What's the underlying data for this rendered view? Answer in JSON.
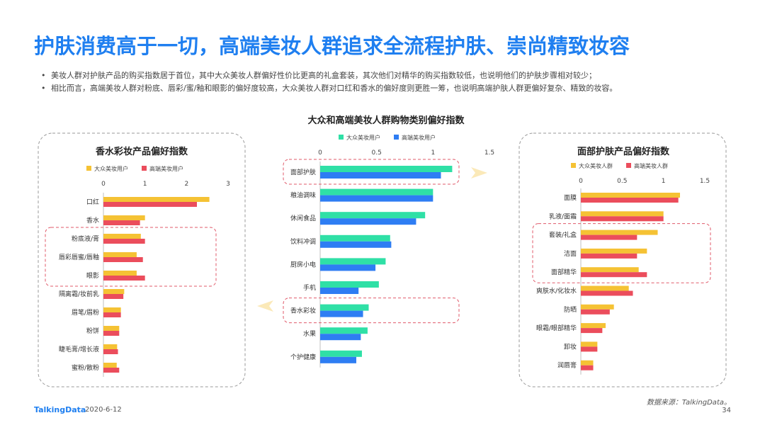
{
  "page": {
    "title": "护肤消费高于一切，高端美妆人群追求全流程护肤、崇尚精致妆容",
    "bullets": [
      "美妆人群对护肤产品的购买指数居于首位，其中大众美妆人群偏好性价比更高的礼盒套装，其次他们对精华的购买指数较低，也说明他们的护肤步骤相对较少；",
      "相比而言，高端美妆人群对粉底、唇彩/蜜/釉和眼影的偏好度较高，大众美妆人群对口红和香水的偏好度则更胜一筹，也说明高端护肤人群更偏好复杂、精致的妆容。"
    ],
    "footer": {
      "logo": "TalkingData",
      "date": "2020-6-12",
      "source": "数据来源：TalkingData。",
      "page_number": "34"
    }
  },
  "colors": {
    "mass": "#f5c234",
    "premium": "#eb4d5c",
    "mass_center": "#2fe0a6",
    "premium_center": "#2e7df3",
    "highlight": "#e05a6a",
    "arrow": "#fbe9b8"
  },
  "chart_data": [
    {
      "id": "left",
      "type": "bar",
      "orientation": "horizontal",
      "title": "香水彩妆产品偏好指数",
      "categories": [
        "口红",
        "香水",
        "粉底液/膏",
        "唇彩唇蜜/唇釉",
        "眼影",
        "隔离霜/妆前乳",
        "眉笔/眉粉",
        "粉饼",
        "睫毛膏/增长液",
        "蜜粉/散粉"
      ],
      "series": [
        {
          "name": "大众美妆用户",
          "values": [
            2.55,
            1.0,
            0.9,
            0.8,
            0.8,
            0.5,
            0.42,
            0.38,
            0.33,
            0.32
          ]
        },
        {
          "name": "高端美妆用户",
          "values": [
            2.25,
            0.88,
            1.0,
            0.95,
            1.0,
            0.48,
            0.42,
            0.38,
            0.35,
            0.38
          ]
        }
      ],
      "xlim": [
        0,
        3
      ],
      "ticks": [
        "0",
        "1",
        "2",
        "3"
      ],
      "highlighted_categories": [
        "粉底液/膏",
        "唇彩唇蜜/唇釉",
        "眼影"
      ]
    },
    {
      "id": "center",
      "type": "bar",
      "orientation": "horizontal",
      "title": "大众和高端美妆人群购物类别偏好指数",
      "categories": [
        "面部护肤",
        "粮油调味",
        "休闲食品",
        "饮料冲调",
        "厨房小电",
        "手机",
        "香水彩妆",
        "水果",
        "个护健康"
      ],
      "series": [
        {
          "name": "大众美妆用户",
          "values": [
            1.17,
            1.0,
            0.93,
            0.62,
            0.58,
            0.52,
            0.43,
            0.42,
            0.37
          ]
        },
        {
          "name": "高端美妆用户",
          "values": [
            1.07,
            1.0,
            0.85,
            0.63,
            0.49,
            0.34,
            0.38,
            0.36,
            0.32
          ]
        }
      ],
      "xlim": [
        0,
        1.5
      ],
      "ticks": [
        "0",
        "0.5",
        "1",
        "1.5"
      ],
      "highlighted_categories": [
        "面部护肤",
        "香水彩妆"
      ]
    },
    {
      "id": "right",
      "type": "bar",
      "orientation": "horizontal",
      "title": "面部护肤产品偏好指数",
      "categories": [
        "面膜",
        "乳液/面霜",
        "套装/礼盒",
        "洁面",
        "面部精华",
        "爽肤水/化妆水",
        "防晒",
        "眼霜/眼部精华",
        "卸妆",
        "润唇膏"
      ],
      "series": [
        {
          "name": "大众美妆人群",
          "values": [
            1.2,
            1.0,
            0.93,
            0.8,
            0.7,
            0.58,
            0.4,
            0.3,
            0.2,
            0.15
          ]
        },
        {
          "name": "高端美妆人群",
          "values": [
            1.18,
            1.0,
            0.68,
            0.68,
            0.8,
            0.63,
            0.35,
            0.26,
            0.2,
            0.15
          ]
        }
      ],
      "xlim": [
        0,
        1.5
      ],
      "ticks": [
        "0",
        "0.5",
        "1",
        "1.5"
      ],
      "highlighted_categories": [
        "套装/礼盒",
        "洁面",
        "面部精华"
      ]
    }
  ]
}
